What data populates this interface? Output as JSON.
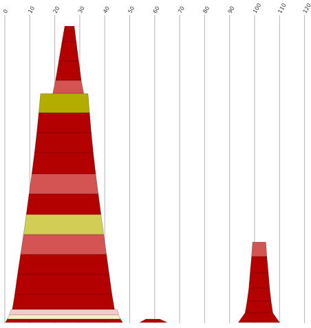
{
  "chart_data": {
    "type": "area",
    "title": "",
    "xlabel": "",
    "ylabel": "",
    "x_ticks": [
      0,
      10,
      20,
      30,
      40,
      50,
      60,
      70,
      80,
      90,
      100,
      110,
      120
    ],
    "x_tick_labels": [
      "0",
      "10",
      "20",
      "30",
      "40",
      "50",
      "60",
      "70",
      "80",
      "90",
      "100",
      "110",
      "120"
    ],
    "xlim": [
      0,
      120
    ],
    "grid": true,
    "legend": "none",
    "colors": {
      "dark_red": "#b30000",
      "light_red": "#d45353",
      "olive": "#b3ad00",
      "light_olive": "#d2cd55",
      "pale_pink": "#f0cccc",
      "cream": "#f4f1c8",
      "grid": "#b3b3b3"
    },
    "shapes": [
      {
        "name": "left-stack",
        "slices": [
          {
            "y_top": 38,
            "y_bottom": 61,
            "x_left_top": 24.0,
            "x_right_top": 27.8,
            "x_left_bottom": 22.9,
            "x_right_bottom": 28.6,
            "color": "dark_red"
          },
          {
            "y_top": 61,
            "y_bottom": 89,
            "x_left_top": 22.9,
            "x_right_top": 28.6,
            "x_left_bottom": 21.6,
            "x_right_bottom": 29.6,
            "color": "dark_red"
          },
          {
            "y_top": 89,
            "y_bottom": 117,
            "x_left_top": 21.6,
            "x_right_top": 29.6,
            "x_left_bottom": 20.3,
            "x_right_bottom": 30.6,
            "color": "dark_red"
          },
          {
            "y_top": 117,
            "y_bottom": 136,
            "x_left_top": 20.3,
            "x_right_top": 30.6,
            "x_left_bottom": 19.2,
            "x_right_bottom": 31.6,
            "color": "light_red"
          },
          {
            "y_top": 136,
            "y_bottom": 164,
            "x_left_top": 14.3,
            "x_right_top": 33.3,
            "x_left_bottom": 13.6,
            "x_right_bottom": 33.9,
            "color": "olive"
          },
          {
            "y_top": 164,
            "y_bottom": 193,
            "x_left_top": 13.6,
            "x_right_top": 33.9,
            "x_left_bottom": 12.8,
            "x_right_bottom": 34.6,
            "color": "dark_red"
          },
          {
            "y_top": 193,
            "y_bottom": 222,
            "x_left_top": 12.8,
            "x_right_top": 34.6,
            "x_left_bottom": 11.9,
            "x_right_bottom": 35.4,
            "color": "dark_red"
          },
          {
            "y_top": 222,
            "y_bottom": 253,
            "x_left_top": 11.9,
            "x_right_top": 35.4,
            "x_left_bottom": 10.8,
            "x_right_bottom": 36.4,
            "color": "dark_red"
          },
          {
            "y_top": 253,
            "y_bottom": 282,
            "x_left_top": 10.8,
            "x_right_top": 36.4,
            "x_left_bottom": 9.7,
            "x_right_bottom": 37.4,
            "color": "light_red"
          },
          {
            "y_top": 282,
            "y_bottom": 312,
            "x_left_top": 9.7,
            "x_right_top": 37.4,
            "x_left_bottom": 8.6,
            "x_right_bottom": 38.5,
            "color": "dark_red"
          },
          {
            "y_top": 312,
            "y_bottom": 341,
            "x_left_top": 8.6,
            "x_right_top": 38.5,
            "x_left_bottom": 7.5,
            "x_right_bottom": 39.6,
            "color": "light_olive"
          },
          {
            "y_top": 341,
            "y_bottom": 370,
            "x_left_top": 7.5,
            "x_right_top": 39.6,
            "x_left_bottom": 6.3,
            "x_right_bottom": 40.7,
            "color": "light_red"
          },
          {
            "y_top": 370,
            "y_bottom": 399,
            "x_left_top": 6.3,
            "x_right_top": 40.7,
            "x_left_bottom": 5.1,
            "x_right_bottom": 41.8,
            "color": "dark_red"
          },
          {
            "y_top": 399,
            "y_bottom": 428,
            "x_left_top": 5.1,
            "x_right_top": 41.8,
            "x_left_bottom": 4.0,
            "x_right_bottom": 42.9,
            "color": "dark_red"
          },
          {
            "y_top": 428,
            "y_bottom": 450,
            "x_left_top": 4.0,
            "x_right_top": 42.9,
            "x_left_bottom": 3.0,
            "x_right_bottom": 43.9,
            "color": "dark_red"
          },
          {
            "y_top": 450,
            "y_bottom": 458,
            "x_left_top": 2.5,
            "x_right_top": 45.0,
            "x_left_bottom": 1.8,
            "x_right_bottom": 45.6,
            "color": "pale_pink"
          },
          {
            "y_top": 458,
            "y_bottom": 464,
            "x_left_top": 1.8,
            "x_right_top": 45.6,
            "x_left_bottom": 1.0,
            "x_right_bottom": 46.3,
            "color": "cream"
          },
          {
            "y_top": 464,
            "y_bottom": 469,
            "x_left_top": 1.0,
            "x_right_top": 46.3,
            "x_left_bottom": 0.2,
            "x_right_bottom": 47.2,
            "color": "dark_red"
          }
        ]
      },
      {
        "name": "middle-bump",
        "slices": [
          {
            "y_top": 464,
            "y_bottom": 469,
            "x_left_top": 56.5,
            "x_right_top": 62.0,
            "x_left_bottom": 54.0,
            "x_right_bottom": 65.0,
            "color": "dark_red"
          }
        ]
      },
      {
        "name": "right-stack",
        "slices": [
          {
            "y_top": 352,
            "y_bottom": 373,
            "x_left_top": 99.2,
            "x_right_top": 104.5,
            "x_left_bottom": 98.8,
            "x_right_bottom": 104.9,
            "color": "light_red"
          },
          {
            "y_top": 373,
            "y_bottom": 397,
            "x_left_top": 98.8,
            "x_right_top": 104.9,
            "x_left_bottom": 98.2,
            "x_right_bottom": 105.5,
            "color": "dark_red"
          },
          {
            "y_top": 397,
            "y_bottom": 419,
            "x_left_top": 98.2,
            "x_right_top": 105.5,
            "x_left_bottom": 97.7,
            "x_right_bottom": 106.0,
            "color": "dark_red"
          },
          {
            "y_top": 419,
            "y_bottom": 438,
            "x_left_top": 97.7,
            "x_right_top": 106.0,
            "x_left_bottom": 97.0,
            "x_right_bottom": 106.6,
            "color": "dark_red"
          },
          {
            "y_top": 438,
            "y_bottom": 455,
            "x_left_top": 97.0,
            "x_right_top": 106.6,
            "x_left_bottom": 96.2,
            "x_right_bottom": 107.3,
            "color": "dark_red"
          },
          {
            "y_top": 455,
            "y_bottom": 469,
            "x_left_top": 96.2,
            "x_right_top": 107.3,
            "x_left_bottom": 93.5,
            "x_right_bottom": 110.0,
            "color": "dark_red"
          }
        ]
      }
    ]
  }
}
